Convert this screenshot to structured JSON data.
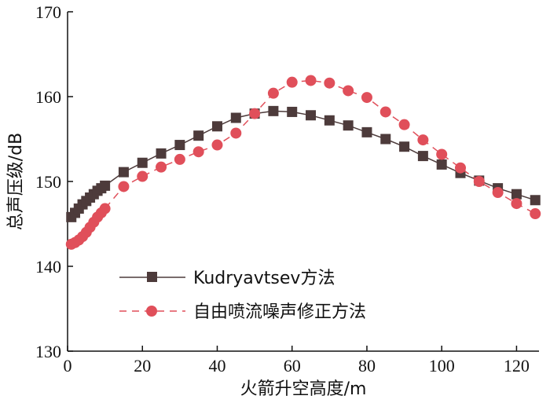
{
  "chart_data": {
    "type": "line",
    "title": "",
    "xlabel": "火箭升空高度/m",
    "ylabel": "总声压级/dB",
    "xlim": [
      0,
      126
    ],
    "ylim": [
      130,
      170
    ],
    "xticks": [
      0,
      20,
      40,
      60,
      80,
      100,
      120
    ],
    "yticks": [
      130,
      140,
      150,
      160,
      170
    ],
    "grid": false,
    "legend_position": "bottom-left",
    "series": [
      {
        "name": "Kudryavtsev方法",
        "color": "#4d3b3b",
        "line_style": "solid",
        "marker": "square",
        "x": [
          1,
          2,
          3,
          4,
          5,
          6,
          7,
          8,
          9,
          10,
          15,
          20,
          25,
          30,
          35,
          40,
          45,
          50,
          55,
          60,
          65,
          70,
          75,
          80,
          85,
          90,
          95,
          100,
          105,
          110,
          115,
          120,
          125
        ],
        "values": [
          145.8,
          146.3,
          146.8,
          147.3,
          147.7,
          148.1,
          148.5,
          148.9,
          149.2,
          149.5,
          151.1,
          152.2,
          153.3,
          154.3,
          155.4,
          156.5,
          157.5,
          158.0,
          158.3,
          158.2,
          157.8,
          157.2,
          156.6,
          155.8,
          155.0,
          154.1,
          153.0,
          152.0,
          151.0,
          150.1,
          149.2,
          148.5,
          147.8
        ]
      },
      {
        "name": "自由喷流噪声修正方法",
        "color": "#e04f5a",
        "line_style": "dashed",
        "marker": "circle",
        "x": [
          1,
          2,
          3,
          4,
          5,
          6,
          7,
          8,
          9,
          10,
          15,
          20,
          25,
          30,
          35,
          40,
          45,
          50,
          55,
          60,
          65,
          70,
          75,
          80,
          85,
          90,
          95,
          100,
          105,
          110,
          115,
          120,
          125
        ],
        "values": [
          142.6,
          142.8,
          143.1,
          143.5,
          144.0,
          144.6,
          145.2,
          145.8,
          146.3,
          146.8,
          149.4,
          150.6,
          151.7,
          152.6,
          153.5,
          154.3,
          155.7,
          158.0,
          160.4,
          161.7,
          161.9,
          161.6,
          160.7,
          159.9,
          158.2,
          156.7,
          154.9,
          153.2,
          151.6,
          150.0,
          148.7,
          147.4,
          146.2
        ]
      }
    ]
  }
}
